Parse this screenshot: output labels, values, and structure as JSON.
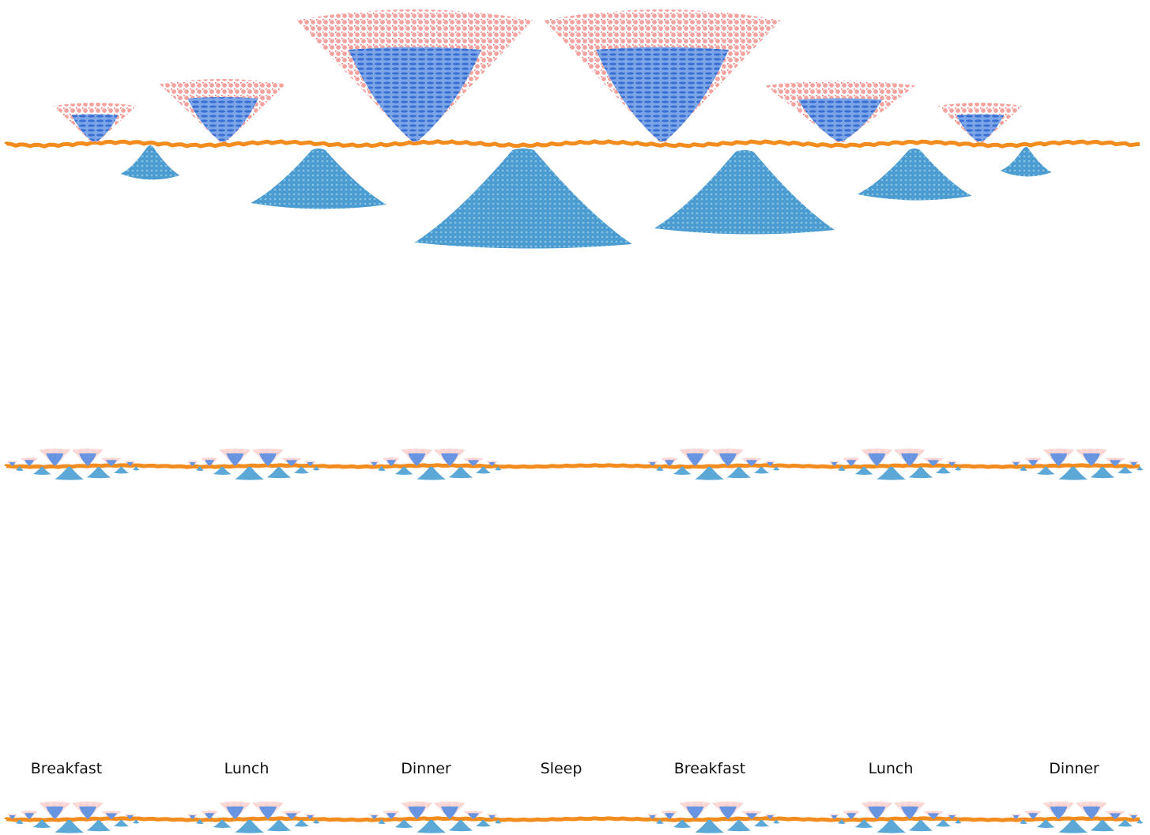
{
  "labels": [
    "Breakfast",
    "Lunch",
    "Dinner",
    "Sleep",
    "Breakfast",
    "Lunch",
    "Dinner"
  ]
}
